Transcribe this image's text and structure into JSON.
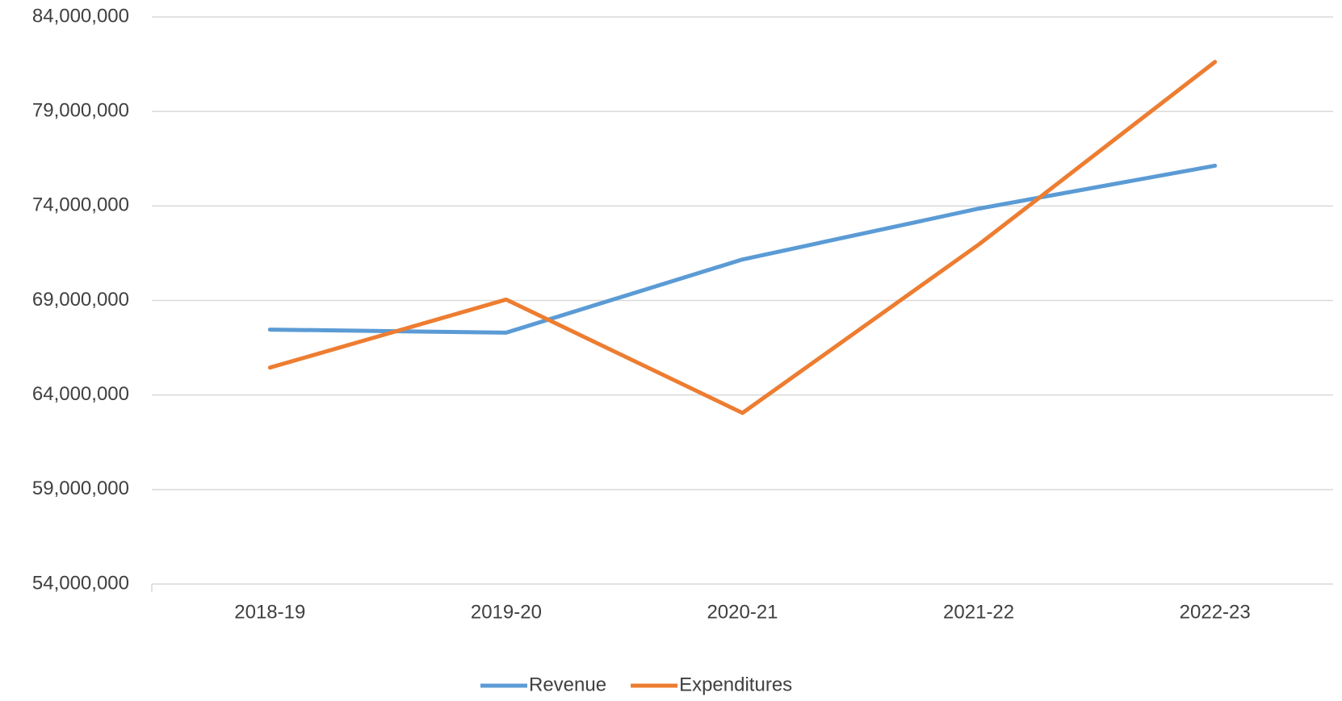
{
  "chart_data": {
    "type": "line",
    "categories": [
      "2018-19",
      "2019-20",
      "2020-21",
      "2021-22",
      "2022-23"
    ],
    "series": [
      {
        "name": "Revenue",
        "color": "#5b9bd5",
        "values": [
          67460000,
          67300000,
          71170000,
          73860000,
          76130000
        ]
      },
      {
        "name": "Expenditures",
        "color": "#ed7d31",
        "values": [
          65450000,
          69050000,
          63050000,
          71960000,
          81620000
        ]
      }
    ],
    "ylim": [
      54000000,
      84000000
    ],
    "yticks": [
      {
        "value": 54000000,
        "label": "54,000,000"
      },
      {
        "value": 59000000,
        "label": "59,000,000"
      },
      {
        "value": 64000000,
        "label": "64,000,000"
      },
      {
        "value": 69000000,
        "label": "69,000,000"
      },
      {
        "value": 74000000,
        "label": "74,000,000"
      },
      {
        "value": 79000000,
        "label": "79,000,000"
      },
      {
        "value": 84000000,
        "label": "84,000,000"
      }
    ],
    "grid": true,
    "legend": "bottom"
  }
}
